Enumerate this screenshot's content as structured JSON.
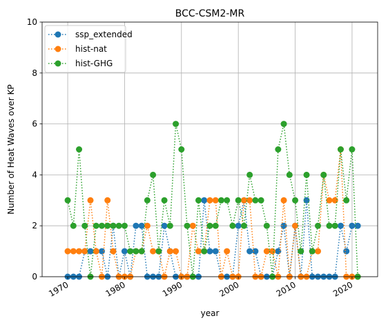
{
  "chart_data": {
    "type": "line",
    "title": "BCC-CSM2-MR",
    "xlabel": "year",
    "ylabel": "Number of Heat Waves over KP",
    "xlim": [
      1965.5,
      2024.5
    ],
    "ylim": [
      0,
      10
    ],
    "xticks": [
      "1970",
      "1980",
      "1990",
      "2000",
      "2010",
      "2020"
    ],
    "xtick_values": [
      1970,
      1980,
      1990,
      2000,
      2010,
      2020
    ],
    "yticks": [
      "0",
      "2",
      "4",
      "6",
      "8",
      "10"
    ],
    "ytick_values": [
      0,
      2,
      4,
      6,
      8,
      10
    ],
    "grid": true,
    "legend_position": "upper-left",
    "x": [
      1970,
      1971,
      1972,
      1973,
      1974,
      1975,
      1976,
      1977,
      1978,
      1979,
      1980,
      1981,
      1982,
      1983,
      1984,
      1985,
      1986,
      1987,
      1988,
      1989,
      1990,
      1991,
      1992,
      1993,
      1994,
      1995,
      1996,
      1997,
      1998,
      1999,
      2000,
      2001,
      2002,
      2003,
      2004,
      2005,
      2006,
      2007,
      2008,
      2009,
      2010,
      2011,
      2012,
      2013,
      2014,
      2015,
      2016,
      2017,
      2018,
      2019,
      2020,
      2021
    ],
    "series": [
      {
        "name": "ssp_extended",
        "color": "#1f77b4",
        "values": [
          0,
          0,
          0,
          1,
          1,
          1,
          1,
          0,
          2,
          0,
          1,
          0,
          2,
          2,
          0,
          0,
          0,
          2,
          1,
          0,
          0,
          0,
          0,
          0,
          3,
          1,
          1,
          0,
          0,
          0,
          2,
          3,
          1,
          1,
          0,
          0,
          0,
          1,
          2,
          0,
          2,
          0,
          3,
          0,
          0,
          0,
          0,
          0,
          2,
          1,
          2,
          2
        ]
      },
      {
        "name": "hist-nat",
        "color": "#ff7f0e",
        "values": [
          1,
          1,
          1,
          1,
          3,
          1,
          0,
          3,
          1,
          0,
          0,
          0,
          1,
          1,
          2,
          1,
          1,
          0,
          1,
          1,
          0,
          0,
          2,
          1,
          1,
          3,
          3,
          0,
          1,
          0,
          0,
          3,
          3,
          0,
          0,
          1,
          1,
          0,
          3,
          0,
          2,
          0,
          0,
          1,
          1,
          4,
          3,
          3,
          5,
          0,
          0,
          0
        ]
      },
      {
        "name": "hist-GHG",
        "color": "#2ca02c",
        "values": [
          3,
          2,
          5,
          2,
          0,
          2,
          2,
          2,
          2,
          2,
          2,
          1,
          1,
          1,
          3,
          4,
          1,
          3,
          2,
          6,
          5,
          2,
          0,
          3,
          1,
          2,
          2,
          3,
          3,
          2,
          3,
          2,
          4,
          3,
          3,
          2,
          0,
          5,
          6,
          4,
          3,
          1,
          4,
          1,
          2,
          4,
          2,
          2,
          5,
          3,
          5,
          0
        ]
      }
    ]
  }
}
